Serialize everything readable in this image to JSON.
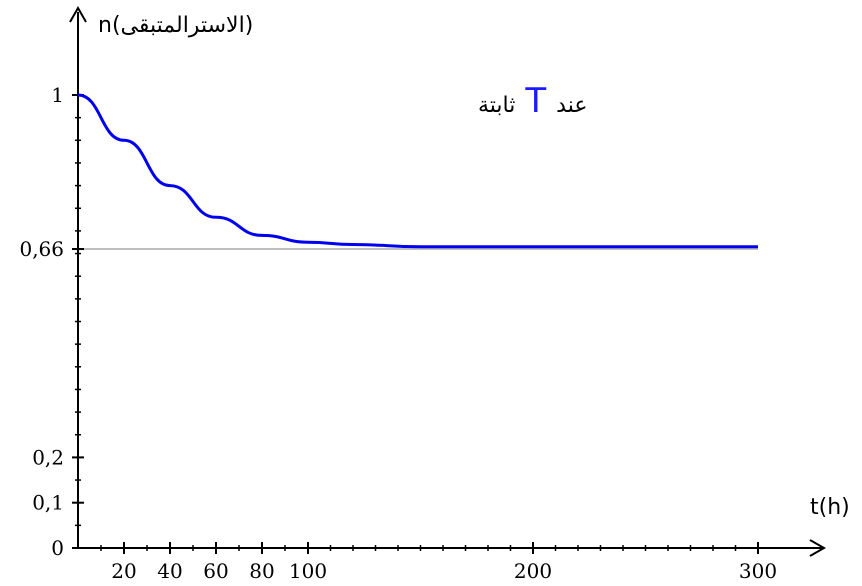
{
  "chart_data": {
    "type": "line",
    "ylabel": "n(الاسترالمتبقى)",
    "xlabel": "t(h)",
    "annotation": {
      "prefix": "عند",
      "symbol": "T",
      "suffix": "ثابتة"
    },
    "x_ticks": [
      {
        "value": 20,
        "label": "20"
      },
      {
        "value": 40,
        "label": "40"
      },
      {
        "value": 60,
        "label": "60"
      },
      {
        "value": 80,
        "label": "80"
      },
      {
        "value": 100,
        "label": "100"
      },
      {
        "value": 200,
        "label": "200"
      },
      {
        "value": 300,
        "label": "300"
      }
    ],
    "y_ticks": [
      {
        "value": 0,
        "label": "0"
      },
      {
        "value": 0.1,
        "label": "0,1"
      },
      {
        "value": 0.2,
        "label": "0,2"
      },
      {
        "value": 0.66,
        "label": "0,66"
      },
      {
        "value": 1,
        "label": "1"
      }
    ],
    "reference_line": {
      "y": 0.66
    },
    "xlim": [
      0,
      320
    ],
    "ylim": [
      0,
      1.1
    ],
    "series": [
      {
        "color": "#0000ee",
        "x": [
          0,
          20,
          40,
          60,
          80,
          100,
          120,
          150,
          200,
          250,
          300
        ],
        "y": [
          1.0,
          0.9,
          0.8,
          0.73,
          0.69,
          0.675,
          0.67,
          0.665,
          0.665,
          0.665,
          0.665
        ]
      }
    ],
    "axis_color": "#000000",
    "reference_color": "#aaaaaa"
  }
}
